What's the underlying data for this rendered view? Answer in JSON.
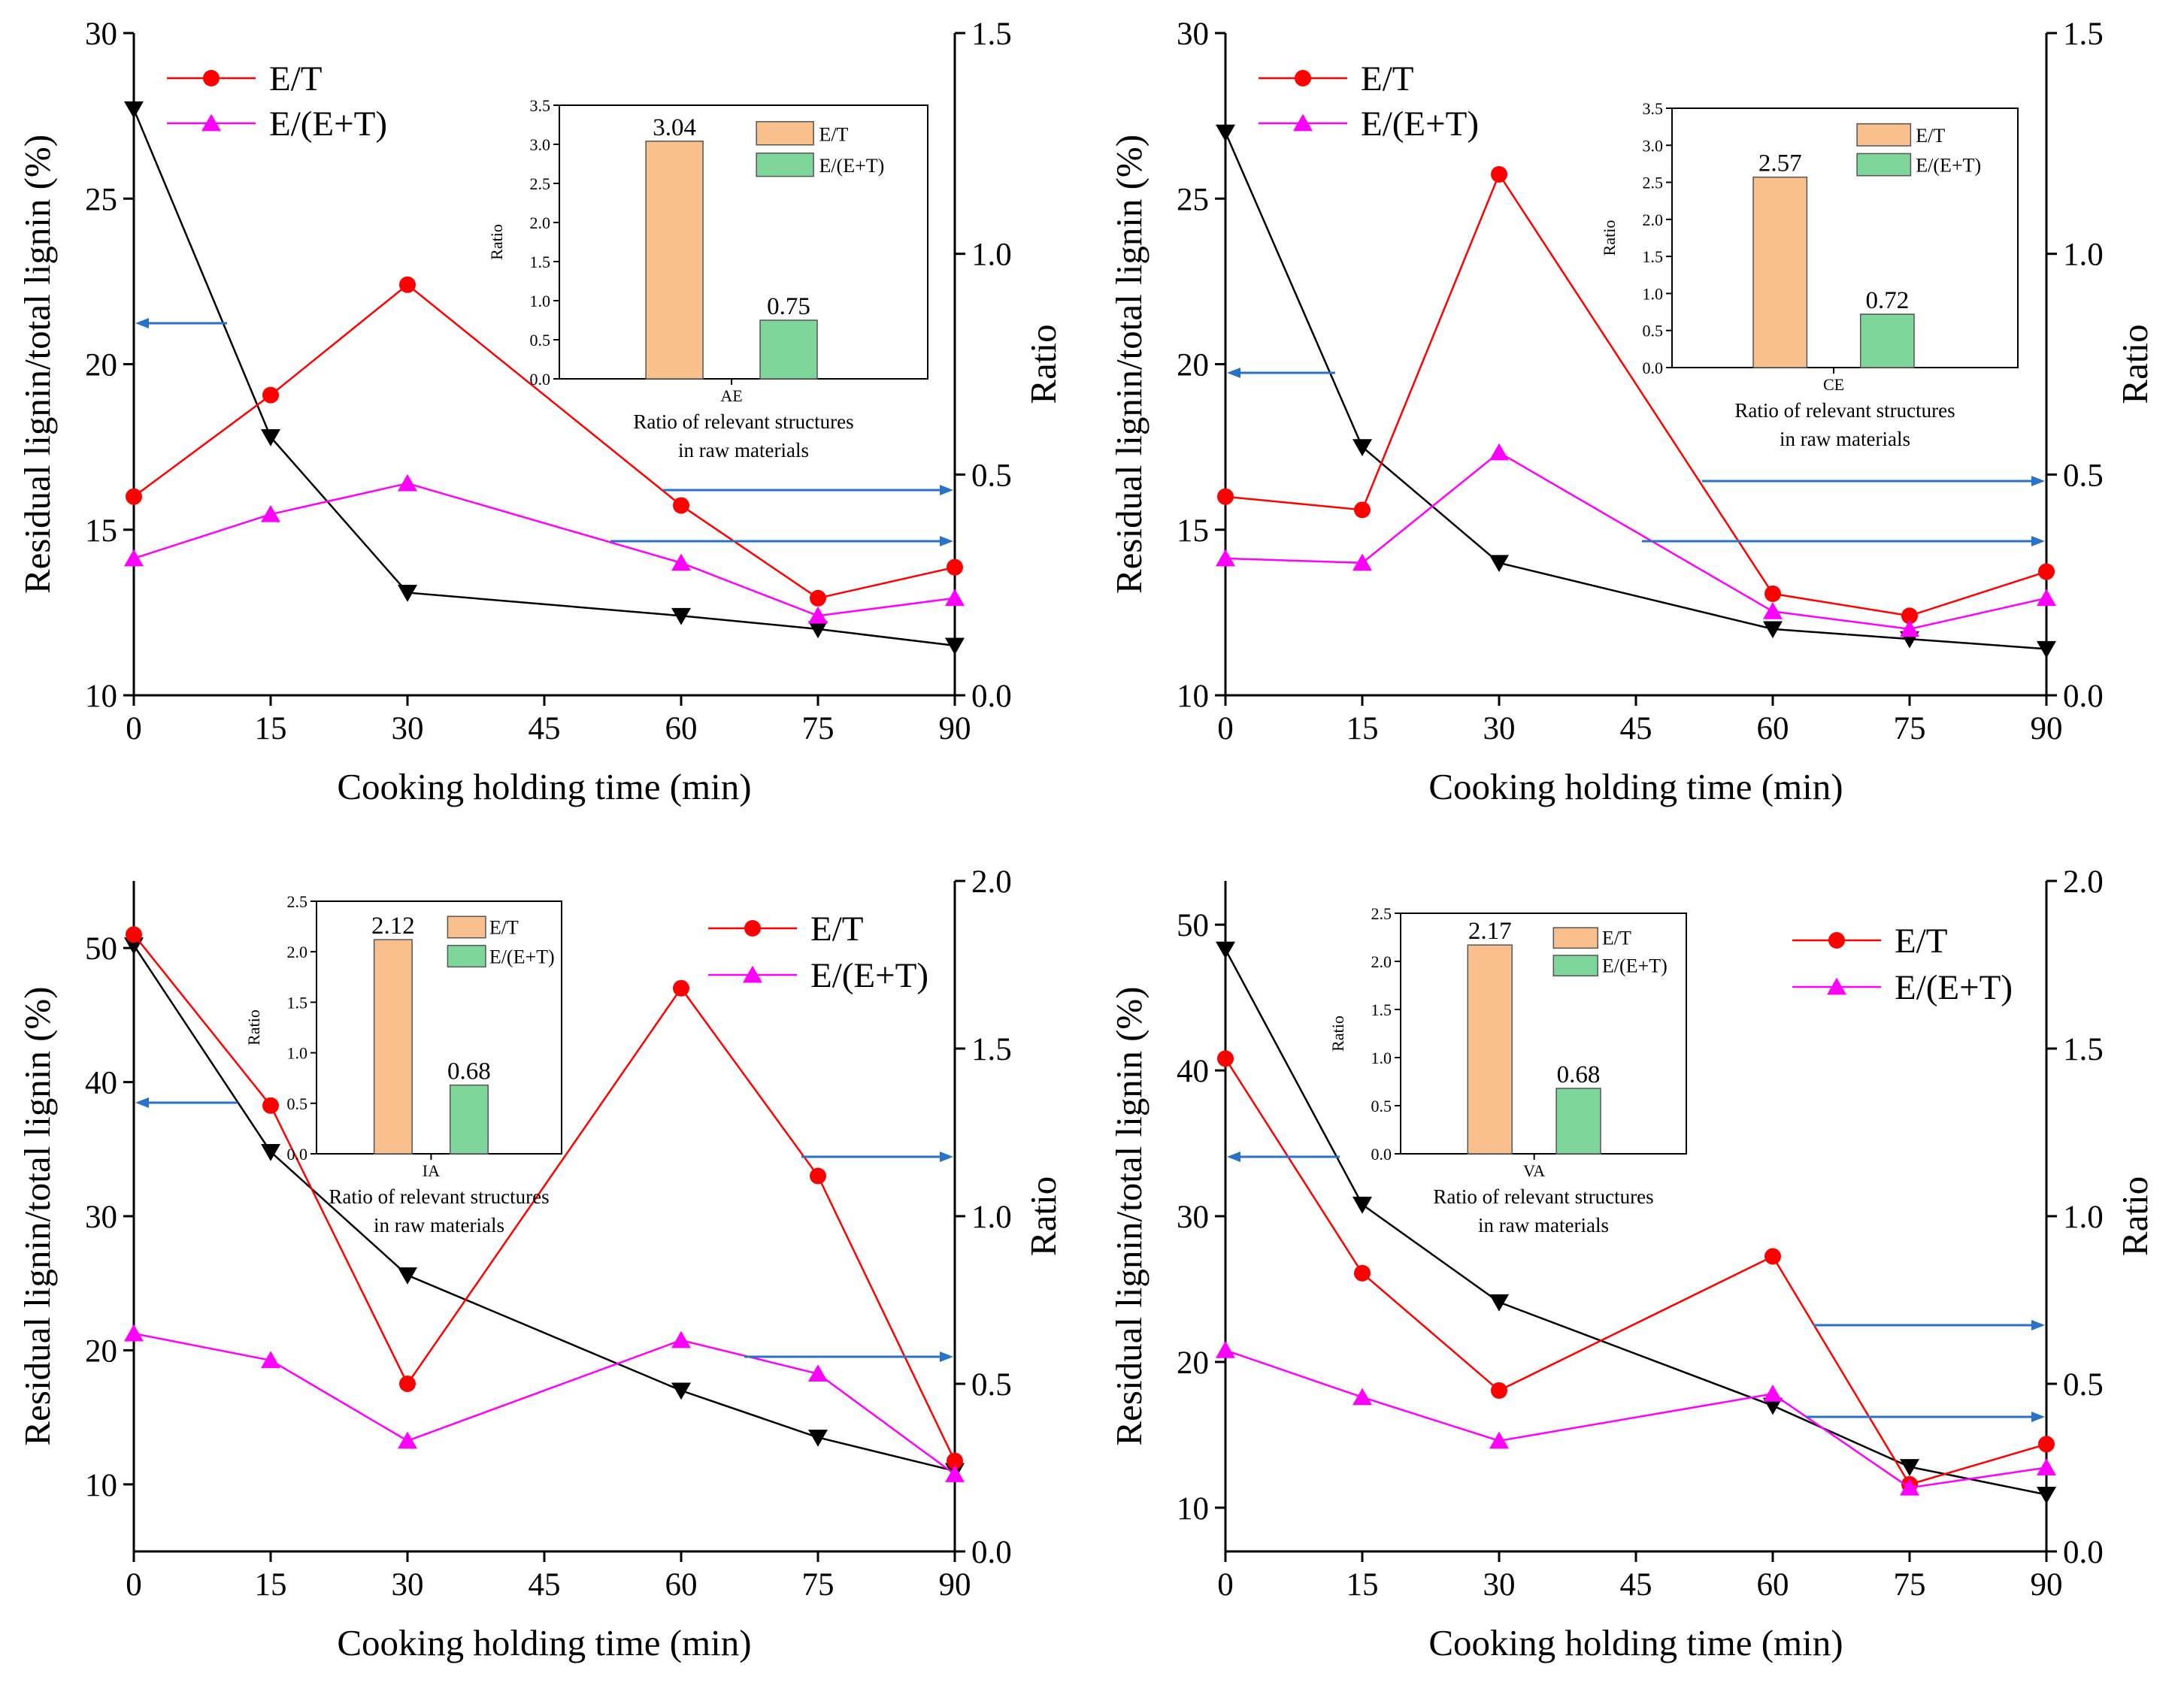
{
  "colors": {
    "et": "#ff0000",
    "ete": "#ff00ff",
    "lignin": "#000000",
    "arrow": "#2a72c8",
    "bar_et": "#f9c08e",
    "bar_ete": "#7fd69a"
  },
  "chart_data": [
    {
      "type": "line",
      "panel": "top-left",
      "xlabel": "Cooking holding time (min)",
      "ylabel_left": "Residual lignin/total lignin (%)",
      "ylabel_right": "Ratio",
      "x_ticks": [
        0,
        15,
        30,
        45,
        60,
        75,
        90
      ],
      "x": [
        0,
        15,
        30,
        60,
        75,
        90
      ],
      "ylim_left": [
        10,
        30
      ],
      "yticks_left": [
        10,
        15,
        20,
        25,
        30
      ],
      "ylim_right": [
        0.0,
        1.5
      ],
      "yticks_right": [
        "0.0",
        "0.5",
        "1.0",
        "1.5"
      ],
      "legend_position": "top-left",
      "series": [
        {
          "name": "Residual lignin",
          "axis": "left",
          "marker": "triangle-down",
          "values": [
            27.7,
            17.8,
            13.1,
            12.4,
            12.0,
            11.5
          ]
        },
        {
          "name": "E/T",
          "axis": "right",
          "marker": "circle",
          "values": [
            0.45,
            0.68,
            0.93,
            0.43,
            0.22,
            0.29
          ]
        },
        {
          "name": "E/(E+T)",
          "axis": "right",
          "marker": "triangle-up",
          "values": [
            0.31,
            0.41,
            0.48,
            0.3,
            0.18,
            0.22
          ]
        }
      ],
      "legend": [
        "E/T",
        "E/(E+T)"
      ],
      "inset": {
        "type": "bar",
        "category": "AE",
        "ylabel": "Ratio",
        "ylim": [
          0,
          3.5
        ],
        "yticks": [
          "0.0",
          "0.5",
          "1.0",
          "1.5",
          "2.0",
          "2.5",
          "3.0",
          "3.5"
        ],
        "series": [
          {
            "name": "E/T",
            "value": 3.04,
            "label": "3.04"
          },
          {
            "name": "E/(E+T)",
            "value": 0.75,
            "label": "0.75"
          }
        ],
        "caption": [
          "Ratio of relevant structures",
          "in raw materials"
        ]
      }
    },
    {
      "type": "line",
      "panel": "top-right",
      "xlabel": "Cooking holding time (min)",
      "ylabel_left": "Residual lignin/total lignin (%)",
      "ylabel_right": "Ratio",
      "x_ticks": [
        0,
        15,
        30,
        45,
        60,
        75,
        90
      ],
      "x": [
        0,
        15,
        30,
        60,
        75,
        90
      ],
      "ylim_left": [
        10,
        30
      ],
      "yticks_left": [
        10,
        15,
        20,
        25,
        30
      ],
      "ylim_right": [
        0.0,
        1.5
      ],
      "yticks_right": [
        "0.0",
        "0.5",
        "1.0",
        "1.5"
      ],
      "legend_position": "top-left",
      "series": [
        {
          "name": "Residual lignin",
          "axis": "left",
          "marker": "triangle-down",
          "values": [
            27.0,
            17.5,
            14.0,
            12.0,
            11.7,
            11.4
          ]
        },
        {
          "name": "E/T",
          "axis": "right",
          "marker": "circle",
          "values": [
            0.45,
            0.42,
            1.18,
            0.23,
            0.18,
            0.28
          ]
        },
        {
          "name": "E/(E+T)",
          "axis": "right",
          "marker": "triangle-up",
          "values": [
            0.31,
            0.3,
            0.55,
            0.19,
            0.15,
            0.22
          ]
        }
      ],
      "legend": [
        "E/T",
        "E/(E+T)"
      ],
      "inset": {
        "type": "bar",
        "category": "CE",
        "ylabel": "Ratio",
        "ylim": [
          0,
          3.5
        ],
        "yticks": [
          "0.0",
          "0.5",
          "1.0",
          "1.5",
          "2.0",
          "2.5",
          "3.0",
          "3.5"
        ],
        "series": [
          {
            "name": "E/T",
            "value": 2.57,
            "label": "2.57"
          },
          {
            "name": "E/(E+T)",
            "value": 0.72,
            "label": "0.72"
          }
        ],
        "caption": [
          "Ratio of relevant structures",
          "in raw materials"
        ]
      }
    },
    {
      "type": "line",
      "panel": "bottom-left",
      "xlabel": "Cooking holding time (min)",
      "ylabel_left": "Residual lignin/total lignin (%)",
      "ylabel_right": "Ratio",
      "x_ticks": [
        0,
        15,
        30,
        45,
        60,
        75,
        90
      ],
      "x": [
        0,
        15,
        30,
        60,
        75,
        90
      ],
      "ylim_left": [
        5,
        55
      ],
      "yticks_left": [
        10,
        20,
        30,
        40,
        50
      ],
      "ylim_right": [
        0.0,
        2.0
      ],
      "yticks_right": [
        "0.0",
        "0.5",
        "1.0",
        "1.5",
        "2.0"
      ],
      "legend_position": "top-right",
      "series": [
        {
          "name": "Residual lignin",
          "axis": "left",
          "marker": "triangle-down",
          "values": [
            50.2,
            34.8,
            25.6,
            17.0,
            13.5,
            11.0
          ]
        },
        {
          "name": "E/T",
          "axis": "right",
          "marker": "circle",
          "values": [
            1.84,
            1.33,
            0.5,
            1.68,
            1.12,
            0.27
          ]
        },
        {
          "name": "E/(E+T)",
          "axis": "right",
          "marker": "triangle-up",
          "values": [
            0.65,
            0.57,
            0.33,
            0.63,
            0.53,
            0.23
          ]
        }
      ],
      "legend": [
        "E/T",
        "E/(E+T)"
      ],
      "inset": {
        "type": "bar",
        "category": "IA",
        "ylabel": "Ratio",
        "ylim": [
          0,
          2.5
        ],
        "yticks": [
          "0.0",
          "0.5",
          "1.0",
          "1.5",
          "2.0",
          "2.5"
        ],
        "series": [
          {
            "name": "E/T",
            "value": 2.12,
            "label": "2.12"
          },
          {
            "name": "E/(E+T)",
            "value": 0.68,
            "label": "0.68"
          }
        ],
        "caption": [
          "Ratio of relevant structures",
          "in raw materials"
        ]
      }
    },
    {
      "type": "line",
      "panel": "bottom-right",
      "xlabel": "Cooking holding time (min)",
      "ylabel_left": "Residual lignin/total lignin (%)",
      "ylabel_right": "Ratio",
      "x_ticks": [
        0,
        15,
        30,
        45,
        60,
        75,
        90
      ],
      "x": [
        0,
        15,
        30,
        60,
        75,
        90
      ],
      "ylim_left": [
        7,
        53
      ],
      "yticks_left": [
        10,
        20,
        30,
        40,
        50
      ],
      "ylim_right": [
        0.0,
        2.0
      ],
      "yticks_right": [
        "0.0",
        "0.5",
        "1.0",
        "1.5",
        "2.0"
      ],
      "legend_position": "top-right",
      "series": [
        {
          "name": "Residual lignin",
          "axis": "left",
          "marker": "triangle-down",
          "values": [
            48.3,
            30.8,
            24.1,
            17.0,
            12.8,
            10.9
          ]
        },
        {
          "name": "E/T",
          "axis": "right",
          "marker": "circle",
          "values": [
            1.47,
            0.83,
            0.48,
            0.88,
            0.2,
            0.32
          ]
        },
        {
          "name": "E/(E+T)",
          "axis": "right",
          "marker": "triangle-up",
          "values": [
            0.6,
            0.46,
            0.33,
            0.47,
            0.19,
            0.25
          ]
        }
      ],
      "legend": [
        "E/T",
        "E/(E+T)"
      ],
      "inset": {
        "type": "bar",
        "category": "VA",
        "ylabel": "Ratio",
        "ylim": [
          0,
          2.5
        ],
        "yticks": [
          "0.0",
          "0.5",
          "1.0",
          "1.5",
          "2.0",
          "2.5"
        ],
        "series": [
          {
            "name": "E/T",
            "value": 2.17,
            "label": "2.17"
          },
          {
            "name": "E/(E+T)",
            "value": 0.68,
            "label": "0.68"
          }
        ],
        "caption": [
          "Ratio of relevant structures",
          "in raw materials"
        ]
      }
    }
  ]
}
